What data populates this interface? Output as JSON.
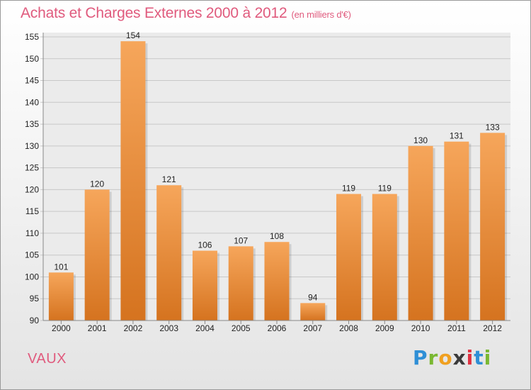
{
  "title": "Achats et Charges Externes 2000 à 2012",
  "subtitle": "(en milliers d'€)",
  "commune": "VAUX",
  "logo": {
    "letters": [
      "P",
      "r",
      "o",
      "x",
      "i",
      "t",
      "i"
    ],
    "colors": [
      "#2f8fd6",
      "#7ab832",
      "#f0a020",
      "#3a3a3a",
      "#e03040",
      "#2f8fd6",
      "#7ab832"
    ]
  },
  "colors": {
    "bar_light": "#f6a65b",
    "bar_dark": "#d5731f",
    "grid": "#c8c8c8",
    "title": "#e05a7d"
  },
  "chart_data": {
    "type": "bar",
    "title": "Achats et Charges Externes 2000 à 2012",
    "subtitle": "(en milliers d'€)",
    "categories": [
      "2000",
      "2001",
      "2002",
      "2003",
      "2004",
      "2005",
      "2006",
      "2007",
      "2008",
      "2009",
      "2010",
      "2011",
      "2012"
    ],
    "values": [
      101,
      120,
      154,
      121,
      106,
      107,
      108,
      94,
      119,
      119,
      130,
      131,
      133
    ],
    "ylim": [
      90,
      155
    ],
    "yticks": [
      90,
      95,
      100,
      105,
      110,
      115,
      120,
      125,
      130,
      135,
      140,
      145,
      150,
      155
    ],
    "grid": true
  }
}
